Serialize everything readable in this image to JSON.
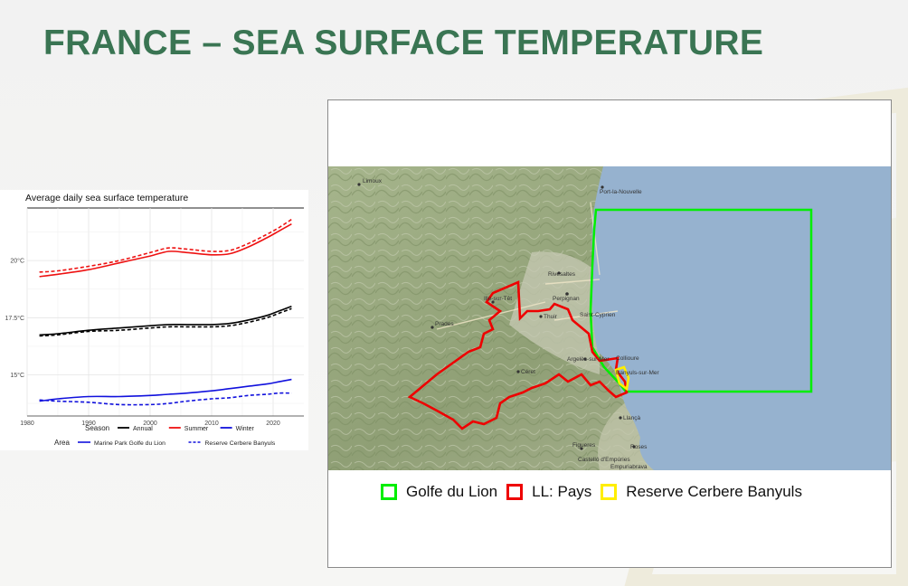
{
  "slide": {
    "title": "FRANCE – SEA SURFACE TEMPERATURE"
  },
  "chart_data": {
    "type": "line",
    "title": "Average daily sea surface temperature",
    "xlabel": "",
    "ylabel": "",
    "xlim": [
      1980,
      2025
    ],
    "ylim": [
      13.2,
      22.3
    ],
    "x_ticks": [
      1980,
      1990,
      2000,
      2010,
      2020
    ],
    "y_ticks": [
      15,
      17.5,
      20
    ],
    "y_tick_labels": [
      "15°C",
      "17.5°C",
      "20°C"
    ],
    "grid": true,
    "legend": {
      "placement": "bottom",
      "season_title": "Season",
      "season_entries": [
        {
          "label": "Annual",
          "color": "#000000"
        },
        {
          "label": "Summer",
          "color": "#ee1111"
        },
        {
          "label": "Winter",
          "color": "#1111dd"
        }
      ],
      "area_title": "Area",
      "area_entries": [
        {
          "label": "Marine Park Golfe du Lion",
          "dash": "solid"
        },
        {
          "label": "Reserve Cerbere Banyuls",
          "dash": "dashed"
        }
      ]
    },
    "x": [
      1982,
      1985,
      1990,
      1995,
      2000,
      2003,
      2006,
      2010,
      2013,
      2016,
      2019,
      2021,
      2023
    ],
    "series": [
      {
        "name": "Summer - Marine Park Golfe du Lion",
        "season": "Summer",
        "area": "Marine Park Golfe du Lion",
        "color": "#ee1111",
        "dash": "solid",
        "values": [
          19.3,
          19.4,
          19.6,
          19.9,
          20.2,
          20.4,
          20.35,
          20.25,
          20.3,
          20.6,
          21.0,
          21.3,
          21.6
        ]
      },
      {
        "name": "Summer - Reserve Cerbere Banyuls",
        "season": "Summer",
        "area": "Reserve Cerbere Banyuls",
        "color": "#ee1111",
        "dash": "dashed",
        "values": [
          19.5,
          19.55,
          19.75,
          20.0,
          20.35,
          20.55,
          20.5,
          20.4,
          20.45,
          20.75,
          21.15,
          21.45,
          21.8
        ]
      },
      {
        "name": "Annual - Marine Park Golfe du Lion",
        "season": "Annual",
        "area": "Marine Park Golfe du Lion",
        "color": "#000000",
        "dash": "solid",
        "values": [
          16.75,
          16.8,
          16.95,
          17.05,
          17.15,
          17.2,
          17.2,
          17.2,
          17.25,
          17.4,
          17.6,
          17.8,
          18.0
        ]
      },
      {
        "name": "Annual - Reserve Cerbere Banyuls",
        "season": "Annual",
        "area": "Reserve Cerbere Banyuls",
        "color": "#000000",
        "dash": "dashed",
        "values": [
          16.7,
          16.75,
          16.9,
          16.95,
          17.05,
          17.1,
          17.1,
          17.1,
          17.15,
          17.3,
          17.5,
          17.7,
          17.9
        ]
      },
      {
        "name": "Winter - Marine Park Golfe du Lion",
        "season": "Winter",
        "area": "Marine Park Golfe du Lion",
        "color": "#1111dd",
        "dash": "solid",
        "values": [
          13.85,
          13.95,
          14.05,
          14.05,
          14.1,
          14.15,
          14.2,
          14.3,
          14.4,
          14.5,
          14.6,
          14.7,
          14.8
        ]
      },
      {
        "name": "Winter - Reserve Cerbere Banyuls",
        "season": "Winter",
        "area": "Reserve Cerbere Banyuls",
        "color": "#1111dd",
        "dash": "dashed",
        "values": [
          13.9,
          13.85,
          13.8,
          13.7,
          13.7,
          13.75,
          13.85,
          13.95,
          14.0,
          14.1,
          14.15,
          14.2,
          14.2
        ]
      }
    ]
  },
  "map": {
    "legend": [
      {
        "label": "Golfe du Lion",
        "color": "#00ee00"
      },
      {
        "label": "LL: Pays",
        "color": "#ee0000"
      },
      {
        "label": "Reserve Cerbere Banyuls",
        "color": "#ffee00"
      }
    ],
    "place_labels": [
      {
        "text": "Limoux"
      },
      {
        "text": "Port-la-Nouvelle"
      },
      {
        "text": "Rivesaltes"
      },
      {
        "text": "Perpignan"
      },
      {
        "text": "Saint-Cyprien"
      },
      {
        "text": "Ille-sur-Têt"
      },
      {
        "text": "Prades"
      },
      {
        "text": "Thuir"
      },
      {
        "text": "Céret"
      },
      {
        "text": "Argelès-sur-Mer"
      },
      {
        "text": "Collioure"
      },
      {
        "text": "Banyuls-sur-Mer"
      },
      {
        "text": "Llançà"
      },
      {
        "text": "Figueres"
      },
      {
        "text": "Roses"
      },
      {
        "text": "Castelló d'Empúries"
      },
      {
        "text": "Empuriabrava"
      }
    ],
    "colors": {
      "sea": "#96b2cf",
      "land": "#9fae83"
    }
  }
}
